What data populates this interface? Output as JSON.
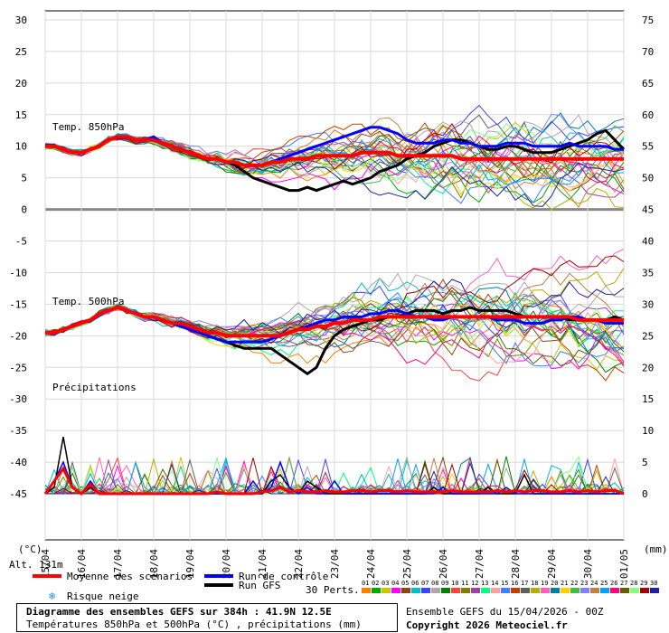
{
  "chart_data": {
    "type": "line",
    "x_labels": [
      "16/04",
      "17/04",
      "18/04",
      "19/04",
      "20/04",
      "21/04",
      "22/04",
      "23/04",
      "24/04",
      "25/04",
      "26/04",
      "27/04",
      "28/04",
      "29/04",
      "30/04",
      "01/05"
    ],
    "x_first_tick": "15/04",
    "left_axis": {
      "unit": "(°C)",
      "ticks": [
        "30",
        "25",
        "20",
        "15",
        "10",
        "5",
        "0",
        "-5",
        "-10",
        "-15",
        "-20",
        "-25",
        "-30",
        "-35",
        "-40",
        "-45"
      ],
      "ylim": [
        -45,
        30
      ]
    },
    "right_axis": {
      "unit": "(mm)",
      "ticks": [
        "75",
        "70",
        "65",
        "60",
        "55",
        "50",
        "45",
        "40",
        "35",
        "30",
        "25",
        "20",
        "15",
        "10",
        "5",
        "0"
      ],
      "ylim": [
        0,
        75
      ]
    },
    "panel_labels": {
      "t850": "Temp. 850hPa",
      "t500": "Temp. 500hPa",
      "precip": "Précipitations"
    },
    "hours": [
      0,
      6,
      12,
      18,
      24,
      30,
      36,
      42,
      48,
      54,
      60,
      66,
      72,
      78,
      84,
      90,
      96,
      102,
      108,
      114,
      120,
      126,
      132,
      138,
      144,
      150,
      156,
      162,
      168,
      174,
      180,
      186,
      192,
      198,
      204,
      210,
      216,
      222,
      228,
      234,
      240,
      246,
      252,
      258,
      264,
      270,
      276,
      282,
      288,
      294,
      300,
      306,
      312,
      318,
      324,
      330,
      336,
      342,
      348,
      354,
      360,
      366,
      372,
      378,
      384
    ],
    "series": [
      {
        "name": "Moyenne des scénarios",
        "color": "#ff0000",
        "t850": [
          10,
          10,
          9.5,
          9,
          9,
          9.5,
          10,
          11,
          11.5,
          11.5,
          11,
          11,
          11,
          10.5,
          10,
          9.5,
          9,
          8.5,
          8,
          8,
          7.5,
          7.5,
          7,
          7,
          7,
          7.5,
          7.5,
          8,
          8,
          8,
          8.5,
          8.5,
          8.5,
          8.5,
          8.5,
          9,
          9,
          9,
          9,
          8.5,
          8.5,
          8.5,
          8.5,
          8.5,
          8.5,
          8.5,
          8,
          8,
          8,
          8,
          8,
          8,
          8,
          8,
          8,
          8,
          8,
          8,
          8,
          8,
          8,
          8,
          8,
          8,
          8
        ],
        "t500": [
          -19.5,
          -19.5,
          -19,
          -18.5,
          -18,
          -17.5,
          -16.5,
          -16,
          -15.5,
          -16,
          -16.5,
          -17,
          -17,
          -17.5,
          -18,
          -18,
          -18.5,
          -19,
          -19.5,
          -19.5,
          -20,
          -20,
          -20,
          -20,
          -20,
          -20,
          -20,
          -19.5,
          -19,
          -19,
          -18.5,
          -18.5,
          -18,
          -18,
          -17.5,
          -17.5,
          -17.5,
          -17,
          -17,
          -17,
          -17,
          -17,
          -17,
          -17,
          -17,
          -17,
          -17,
          -17,
          -17,
          -17,
          -17,
          -17,
          -17,
          -17,
          -17,
          -17,
          -17,
          -17,
          -17,
          -17.5,
          -17.5,
          -17.5,
          -17.5,
          -17.5,
          -17.5
        ],
        "precip": [
          0,
          2,
          4,
          1,
          0,
          1.5,
          0,
          0,
          0,
          0,
          0,
          0,
          0,
          0,
          0,
          0,
          0,
          0,
          0,
          0.3,
          0,
          0,
          0,
          0,
          0.3,
          0.5,
          1,
          0.3,
          0.5,
          0.3,
          0.3,
          0.5,
          0.3,
          0.3,
          0.5,
          0.5,
          0.3,
          0.5,
          0.5,
          0.3,
          0.5,
          0.3,
          0.3,
          0.3,
          0.3,
          0.5,
          0.3,
          0.3,
          0.3,
          0.3,
          0.5,
          0.3,
          0.5,
          0.3,
          0.5,
          0.5,
          0.3,
          0.3,
          0.5,
          0.3,
          0.5,
          0.3,
          0.5,
          0.5,
          0
        ]
      },
      {
        "name": "Run de contrôle",
        "color": "#0000ff",
        "t850": [
          10,
          10,
          9.5,
          9,
          9,
          9.5,
          10,
          11,
          11.5,
          11.5,
          11,
          11,
          11.5,
          10.5,
          10,
          9.5,
          9,
          8.5,
          8,
          8,
          7.5,
          7.5,
          7,
          7,
          7,
          7.5,
          8,
          8.5,
          9,
          9.5,
          10,
          10.5,
          11,
          11.5,
          12,
          12.5,
          13,
          13,
          12.5,
          12,
          11,
          10.5,
          10.5,
          10.5,
          11,
          11,
          10.5,
          10.5,
          10,
          10,
          10,
          10.5,
          10.5,
          10.5,
          10,
          10,
          10,
          10,
          10.5,
          10,
          10,
          10,
          10,
          9.5,
          9.5
        ],
        "t500": [
          -19.5,
          -19.5,
          -19,
          -18.5,
          -18,
          -17.5,
          -16.5,
          -16,
          -15.5,
          -16,
          -16.5,
          -17,
          -17,
          -17.5,
          -18,
          -18.5,
          -19,
          -19.5,
          -20,
          -20.5,
          -21,
          -21,
          -21,
          -21,
          -21,
          -20.5,
          -20,
          -19.5,
          -19,
          -18.5,
          -18,
          -17.5,
          -17.5,
          -17,
          -17,
          -17,
          -16.5,
          -16.5,
          -16,
          -16,
          -16.5,
          -17,
          -17,
          -17.5,
          -17.5,
          -17,
          -17,
          -17,
          -17,
          -17,
          -17.5,
          -17.5,
          -17.5,
          -18,
          -18,
          -18,
          -17.5,
          -17.5,
          -17,
          -17,
          -17.5,
          -17.5,
          -18,
          -18,
          -18
        ],
        "precip": [
          0,
          2,
          5,
          1,
          0,
          2,
          0,
          0,
          0,
          0,
          0,
          0,
          0,
          0,
          0,
          0,
          0,
          0,
          0,
          0,
          0,
          0,
          0,
          2,
          0,
          1,
          5,
          1,
          0,
          1,
          0,
          0,
          2,
          0,
          0,
          0,
          0,
          0,
          0,
          0,
          0,
          0,
          0,
          0,
          1,
          0,
          0,
          0,
          0,
          0,
          0,
          1,
          0,
          0,
          0,
          0,
          0,
          0,
          0,
          0,
          0,
          0,
          0,
          0,
          0
        ]
      },
      {
        "name": "Run GFS",
        "color": "#000000",
        "t850": [
          10,
          10,
          9.5,
          9,
          9,
          9.5,
          10,
          11,
          11.5,
          11.5,
          11,
          11,
          11,
          10.5,
          10,
          9.5,
          9,
          8.5,
          8,
          8,
          7.5,
          7,
          6,
          5,
          4.5,
          4,
          3.5,
          3,
          3,
          3.5,
          3,
          3.5,
          4,
          4.5,
          4,
          4.5,
          5,
          6,
          6.5,
          7,
          8,
          8.5,
          9,
          10,
          10.5,
          11,
          11,
          10.5,
          10,
          9.5,
          9.5,
          10,
          10,
          9.5,
          9,
          9,
          9,
          9.5,
          10,
          10.5,
          11,
          12,
          12.5,
          11,
          9.5
        ],
        "t500": [
          -19.5,
          -19.5,
          -19,
          -18.5,
          -18,
          -17.5,
          -16.5,
          -16,
          -15.5,
          -16,
          -16.5,
          -17,
          -17,
          -17.5,
          -18,
          -18.5,
          -19,
          -19.5,
          -20,
          -20.5,
          -21,
          -21.5,
          -22,
          -22,
          -22,
          -22,
          -23,
          -24,
          -25,
          -26,
          -25,
          -22,
          -20,
          -19,
          -18.5,
          -18,
          -17.5,
          -17.5,
          -17,
          -17,
          -16.5,
          -16,
          -16,
          -16,
          -16.5,
          -16,
          -16,
          -15.5,
          -16,
          -16,
          -16,
          -16,
          -16.5,
          -17,
          -17,
          -17,
          -17,
          -17,
          -17.5,
          -17.5,
          -17.5,
          -17.5,
          -17.5,
          -17,
          -17.5
        ],
        "precip": [
          0,
          1,
          9,
          1,
          0,
          1,
          0,
          0,
          0,
          0,
          0,
          0,
          0,
          0,
          0,
          0,
          0,
          0,
          0,
          0,
          0,
          0,
          0,
          0,
          0,
          2,
          3,
          1,
          0,
          2,
          1,
          0,
          0,
          0,
          0,
          0,
          0,
          0,
          0,
          0,
          0,
          0,
          0,
          1,
          0,
          0,
          0,
          0,
          0,
          1,
          0,
          0,
          0,
          3,
          0,
          0,
          0,
          0,
          0,
          0,
          0,
          0,
          0,
          0,
          0
        ]
      }
    ],
    "perturbation_colors": [
      "#ff8000",
      "#00aa00",
      "#c8c800",
      "#ff00ff",
      "#8b4513",
      "#00c0c0",
      "#4040ff",
      "#aaaaaa",
      "#008000",
      "#ff4040",
      "#808000",
      "#a040a0",
      "#00ff80",
      "#ffa0a0",
      "#4080ff",
      "#c04000",
      "#606060",
      "#b0b000",
      "#ff60c0",
      "#0080a0",
      "#ffd000",
      "#40c040",
      "#8080ff",
      "#c08040",
      "#00a0ff",
      "#ff0080",
      "#606000",
      "#80ff80",
      "#a00000",
      "#2020a0"
    ],
    "legend": {
      "mean": "Moyenne des scénarios",
      "control": "Run de contrôle",
      "gfs": "Run GFS",
      "snow": "Risque neige",
      "altitude": "Alt. 131m",
      "perts_label": "30 Perts.",
      "pert_numbers": [
        "01",
        "02",
        "03",
        "04",
        "05",
        "06",
        "07",
        "08",
        "09",
        "10",
        "11",
        "12",
        "13",
        "14",
        "15",
        "16",
        "17",
        "18",
        "19",
        "20",
        "21",
        "22",
        "23",
        "24",
        "25",
        "26",
        "27",
        "28",
        "29",
        "30"
      ]
    },
    "footer": {
      "title": "Diagramme des ensembles GEFS sur 384h : 41.9N 12.5E",
      "subtitle": "Températures 850hPa et 500hPa (°C) , précipitations (mm)",
      "run": "Ensemble GEFS du 15/04/2026 - 00Z",
      "copyright": "Copyright 2026 Meteociel.fr"
    }
  }
}
